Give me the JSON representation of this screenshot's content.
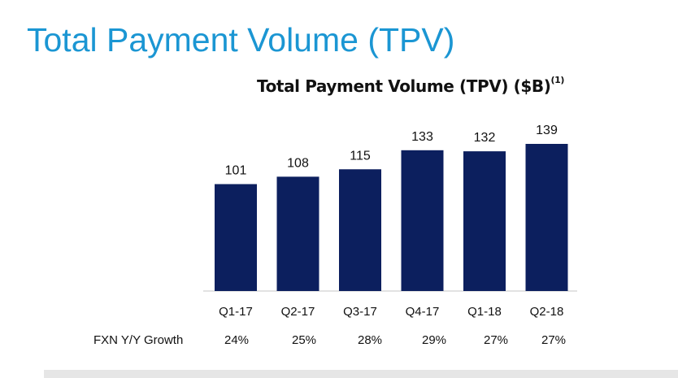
{
  "slide": {
    "title": "Total Payment Volume (TPV)"
  },
  "chart_data": {
    "type": "bar",
    "title": "Total Payment Volume (TPV) ($B)",
    "title_footnote": "(1)",
    "categories": [
      "Q1-17",
      "Q2-17",
      "Q3-17",
      "Q4-17",
      "Q1-18",
      "Q2-18"
    ],
    "values": [
      101,
      108,
      115,
      133,
      132,
      139
    ],
    "data_labels": [
      "101",
      "108",
      "115",
      "133",
      "132",
      "139"
    ],
    "ylim": [
      0,
      139
    ],
    "grid": false,
    "bar_color": "#0c1f5e"
  },
  "growth_row": {
    "label": "FXN Y/Y Growth",
    "values": [
      "24%",
      "25%",
      "28%",
      "29%",
      "27%",
      "27%"
    ]
  }
}
